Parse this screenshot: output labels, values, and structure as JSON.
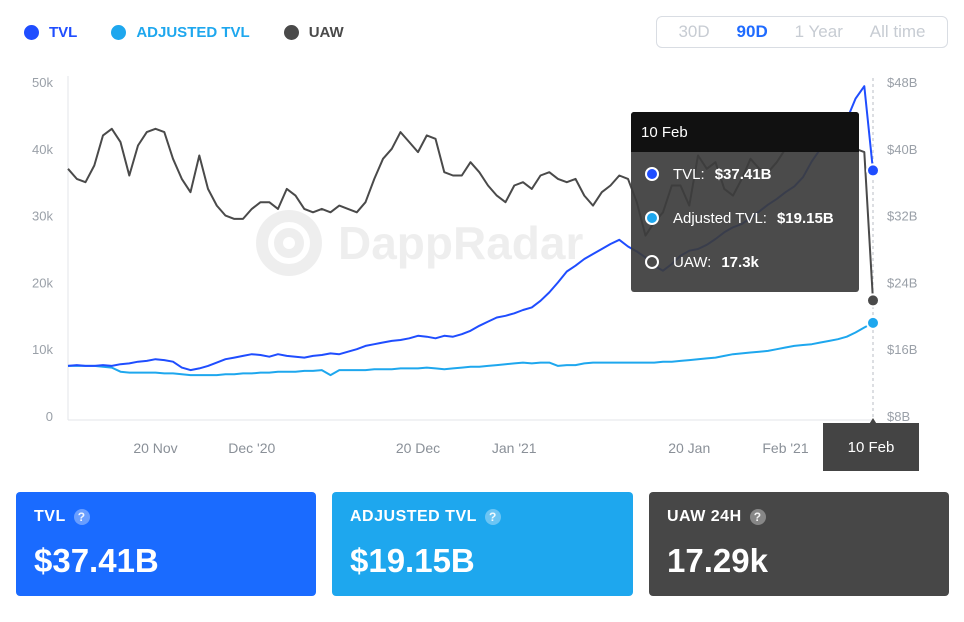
{
  "legend": [
    {
      "label": "TVL",
      "color": "#1f4dff"
    },
    {
      "label": "ADJUSTED TVL",
      "color": "#1ea7ee"
    },
    {
      "label": "UAW",
      "color": "#4a4a4a"
    }
  ],
  "range": {
    "options": [
      "30D",
      "90D",
      "1 Year",
      "All time"
    ],
    "active": "90D"
  },
  "watermark": "DappRadar",
  "tooltip": {
    "date": "10 Feb",
    "rows": [
      {
        "label": "TVL:",
        "value": "$37.41B",
        "color": "#1f4dff"
      },
      {
        "label": "Adjusted TVL:",
        "value": "$19.15B",
        "color": "#1ea7ee"
      },
      {
        "label": "UAW:",
        "value": "17.3k",
        "color": "#4a4a4a"
      }
    ]
  },
  "x_tooltip": "10 Feb",
  "cards": [
    {
      "label": "TVL",
      "value": "$37.41B",
      "color": "#1a6bff"
    },
    {
      "label": "ADJUSTED TVL",
      "value": "$19.15B",
      "color": "#1ea7ee"
    },
    {
      "label": "UAW 24H",
      "value": "17.29k",
      "color": "#474747"
    }
  ],
  "chart_data": {
    "type": "line",
    "x_tick_labels": [
      "20 Nov",
      "Dec '20",
      "20 Dec",
      "Jan '21",
      "20 Jan",
      "Feb '21"
    ],
    "x_tick_days": [
      10,
      21,
      40,
      51,
      71,
      82
    ],
    "x_range_days": [
      0,
      92
    ],
    "left_axis": {
      "ticks": [
        "0",
        "10k",
        "20k",
        "30k",
        "40k",
        "50k"
      ],
      "range": [
        0,
        50000
      ]
    },
    "right_axis": {
      "ticks": [
        "$8B",
        "$16B",
        "$24B",
        "$32B",
        "$40B",
        "$48B"
      ],
      "range": [
        8,
        48
      ]
    },
    "grid": false,
    "series": [
      {
        "name": "UAW",
        "axis": "left",
        "color": "#4a4a4a",
        "values": [
          37000,
          35500,
          35000,
          37500,
          42000,
          43000,
          41000,
          36000,
          40500,
          42500,
          43000,
          42500,
          38500,
          35500,
          33500,
          39000,
          34000,
          31500,
          30000,
          29500,
          29500,
          31000,
          32000,
          32000,
          31000,
          34000,
          33000,
          31000,
          30500,
          31000,
          30500,
          31500,
          31000,
          30500,
          32000,
          35500,
          38500,
          40000,
          42500,
          41000,
          39500,
          42000,
          41500,
          36500,
          36000,
          36000,
          38000,
          36500,
          34500,
          33000,
          32000,
          34500,
          35000,
          34000,
          36000,
          36500,
          35500,
          35000,
          35500,
          33000,
          31500,
          33500,
          34500,
          36000,
          35500,
          32000,
          27000,
          29000,
          30500,
          34500,
          34500,
          31500,
          39000,
          37000,
          38000,
          34000,
          33000,
          35500,
          38500,
          37000,
          36500,
          38000,
          40000,
          41000,
          42500,
          43500,
          43000,
          41500,
          40500,
          42000,
          40000,
          39500,
          17300
        ]
      },
      {
        "name": "TVL",
        "axis": "right",
        "color": "#1f4dff",
        "values": [
          14.0,
          14.1,
          14.0,
          14.0,
          14.1,
          14.0,
          14.2,
          14.3,
          14.5,
          14.6,
          14.8,
          14.7,
          14.5,
          13.8,
          13.5,
          13.7,
          14.0,
          14.4,
          14.8,
          15.0,
          15.2,
          15.4,
          15.3,
          15.1,
          15.4,
          15.2,
          15.1,
          15.0,
          15.2,
          15.3,
          15.5,
          15.4,
          15.7,
          16.0,
          16.4,
          16.6,
          16.8,
          17.0,
          17.1,
          17.3,
          17.6,
          17.5,
          17.3,
          17.6,
          17.5,
          17.8,
          18.2,
          18.8,
          19.3,
          19.8,
          20.0,
          20.3,
          20.7,
          21.0,
          21.8,
          22.8,
          24.0,
          25.3,
          26.0,
          26.8,
          27.4,
          28.0,
          28.6,
          29.1,
          28.3,
          27.7,
          27.0,
          26.0,
          25.4,
          26.2,
          27.2,
          27.8,
          28.0,
          28.5,
          29.2,
          30.0,
          30.6,
          31.0,
          31.7,
          32.5,
          33.3,
          34.0,
          34.8,
          35.5,
          36.6,
          38.5,
          40.0,
          40.8,
          41.8,
          43.5,
          46.0,
          47.5,
          37.41
        ]
      },
      {
        "name": "ADJUSTED TVL",
        "axis": "right",
        "color": "#1ea7ee",
        "values": [
          14.0,
          14.0,
          14.0,
          14.0,
          13.9,
          13.8,
          13.3,
          13.2,
          13.2,
          13.2,
          13.2,
          13.1,
          13.1,
          13.0,
          12.9,
          12.9,
          12.9,
          12.9,
          13.0,
          13.0,
          13.1,
          13.1,
          13.2,
          13.2,
          13.3,
          13.3,
          13.3,
          13.4,
          13.4,
          13.5,
          12.9,
          13.5,
          13.5,
          13.5,
          13.5,
          13.6,
          13.6,
          13.6,
          13.7,
          13.7,
          13.7,
          13.8,
          13.7,
          13.6,
          13.7,
          13.8,
          13.9,
          13.9,
          14.0,
          14.1,
          14.2,
          14.3,
          14.4,
          14.3,
          14.4,
          14.4,
          14.0,
          14.1,
          14.1,
          14.3,
          14.4,
          14.4,
          14.4,
          14.4,
          14.4,
          14.4,
          14.4,
          14.4,
          14.5,
          14.5,
          14.6,
          14.7,
          14.8,
          14.9,
          15.0,
          15.2,
          15.4,
          15.5,
          15.6,
          15.7,
          15.8,
          16.0,
          16.2,
          16.4,
          16.5,
          16.6,
          16.8,
          17.0,
          17.2,
          17.5,
          18.0,
          18.6,
          19.15
        ]
      }
    ]
  }
}
